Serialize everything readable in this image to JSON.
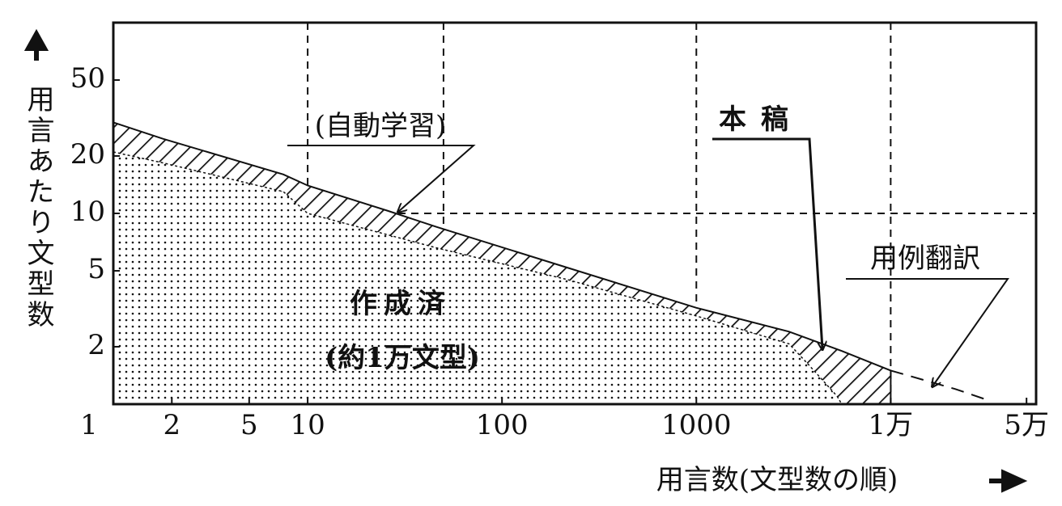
{
  "chart_data": {
    "type": "area",
    "x_label": "用言数(文型数の順)",
    "y_label": "用言あたり文型数",
    "xlim": [
      1,
      56000
    ],
    "ylim": [
      1,
      100
    ],
    "log_x": true,
    "log_y": true,
    "xticks": [
      1,
      2,
      5,
      10,
      100,
      1000,
      {
        "value": 10000,
        "label": "1万"
      },
      {
        "value": 50000,
        "label": "5万"
      }
    ],
    "yticks": [
      2,
      5,
      10,
      20,
      50
    ],
    "x_grid": [
      10,
      50,
      1000,
      10000
    ],
    "y_grid": [
      10
    ],
    "series": [
      {
        "name": "作成済",
        "color": "#111111",
        "x": [
          1,
          1.8,
          7.5,
          10,
          46,
          216,
          1000,
          3000,
          3800,
          5300,
          5600
        ],
        "values": [
          21,
          18.4,
          13,
          10,
          6.6,
          4.5,
          2.9,
          2.07,
          1.6,
          1.1,
          1
        ]
      },
      {
        "name": "(自動学習)",
        "color": "#111111",
        "x": [
          1,
          1.8,
          7.5,
          10,
          26,
          46,
          216,
          1000,
          3000,
          5600,
          10000
        ],
        "values": [
          30,
          24.6,
          16,
          14,
          10.3,
          8.5,
          5.2,
          3.2,
          2.4,
          1.9,
          1.5
        ]
      },
      {
        "name": "用例翻訳",
        "color": "#111111",
        "x": [
          10000,
          21500,
          31600
        ],
        "values": [
          1.5,
          1.2,
          1.05
        ]
      }
    ],
    "annotations": [
      "本稿",
      "(約1万文型)"
    ]
  }
}
